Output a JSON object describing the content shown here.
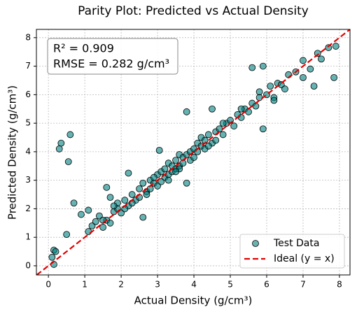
{
  "chart_data": {
    "type": "scatter",
    "title": "Parity Plot: Predicted vs Actual Density",
    "x_label": "Actual Density (g/cm³)",
    "y_label": "Predicted Density (g/cm³)",
    "annotation": [
      "R² = 0.909",
      "RMSE = 0.282 g/cm³"
    ],
    "xlim": [
      -0.33,
      8.29
    ],
    "ylim": [
      -0.32,
      8.29
    ],
    "xticks": [
      0,
      1,
      2,
      3,
      4,
      5,
      6,
      7,
      8
    ],
    "yticks": [
      0,
      1,
      2,
      3,
      4,
      5,
      6,
      7,
      8
    ],
    "grid": true,
    "legend": "lower right",
    "series": [
      {
        "name": "Test Data",
        "color": "#008080",
        "x": [
          0.1,
          0.15,
          0.2,
          0.15,
          0.3,
          0.35,
          0.55,
          0.6,
          0.7,
          0.5,
          0.9,
          1.1,
          1.1,
          1.2,
          1.3,
          1.4,
          1.5,
          1.6,
          1.6,
          1.7,
          1.8,
          1.9,
          2.0,
          2.1,
          2.2,
          2.2,
          2.3,
          2.4,
          2.5,
          2.5,
          2.6,
          2.6,
          2.7,
          2.8,
          2.8,
          2.9,
          3.0,
          3.0,
          3.05,
          3.1,
          3.1,
          3.2,
          3.2,
          3.3,
          3.3,
          3.4,
          3.4,
          3.5,
          3.5,
          3.6,
          3.6,
          3.7,
          3.7,
          3.8,
          3.8,
          3.8,
          3.9,
          3.9,
          4.0,
          4.0,
          4.1,
          4.1,
          4.2,
          4.2,
          4.3,
          4.3,
          4.4,
          4.5,
          4.5,
          4.6,
          4.7,
          4.8,
          4.9,
          5.0,
          5.1,
          5.2,
          5.3,
          5.4,
          5.5,
          5.6,
          5.6,
          5.7,
          5.8,
          5.9,
          5.9,
          6.0,
          6.1,
          6.2,
          6.3,
          6.4,
          6.5,
          6.6,
          6.8,
          7.0,
          7.0,
          7.2,
          7.3,
          7.4,
          7.5,
          7.7,
          7.85,
          7.9,
          1.5,
          1.7,
          1.9,
          2.3,
          2.7,
          3.3,
          3.6,
          4.4,
          4.8,
          5.3,
          1.8,
          2.1,
          2.9,
          3.5,
          4.6,
          5.8,
          6.2
        ],
        "y": [
          0.3,
          0.55,
          0.5,
          0.05,
          4.1,
          4.3,
          3.65,
          4.6,
          2.2,
          1.1,
          1.8,
          1.95,
          1.2,
          1.4,
          1.55,
          1.75,
          1.35,
          1.6,
          2.75,
          2.4,
          1.9,
          2.2,
          1.85,
          2.3,
          2.1,
          3.25,
          2.5,
          2.3,
          2.7,
          2.4,
          1.7,
          2.9,
          2.6,
          3.0,
          2.7,
          2.9,
          3.2,
          2.8,
          4.05,
          3.3,
          2.95,
          3.4,
          3.1,
          3.2,
          3.6,
          3.5,
          3.3,
          3.7,
          3.4,
          3.5,
          3.9,
          3.8,
          3.6,
          5.4,
          2.9,
          3.9,
          4.0,
          3.7,
          4.1,
          3.8,
          4.3,
          4.0,
          4.2,
          4.5,
          4.4,
          4.1,
          4.6,
          5.5,
          4.3,
          4.7,
          4.8,
          4.6,
          5.0,
          5.1,
          4.9,
          5.3,
          5.2,
          5.5,
          5.4,
          6.95,
          5.7,
          5.6,
          5.9,
          7.0,
          4.8,
          6.0,
          6.3,
          5.9,
          6.4,
          6.35,
          6.2,
          6.7,
          6.8,
          7.2,
          6.6,
          6.9,
          6.3,
          7.45,
          7.25,
          7.65,
          6.6,
          7.7,
          1.6,
          1.5,
          2.0,
          2.2,
          2.5,
          3.0,
          3.4,
          4.2,
          5.0,
          5.5,
          2.1,
          2.0,
          3.1,
          3.3,
          4.4,
          6.1,
          5.8
        ]
      },
      {
        "name": "Ideal (y = x)",
        "color": "#e00000"
      }
    ]
  }
}
